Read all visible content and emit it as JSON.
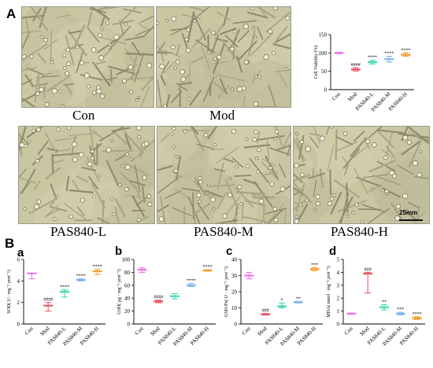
{
  "panel_labels": {
    "A": "A",
    "B": "B",
    "a": "a",
    "b": "b",
    "c": "c",
    "d": "d"
  },
  "captions": [
    "Con",
    "Mod",
    "PAS840-L",
    "PAS840-M",
    "PAS840-H"
  ],
  "scale_bar_label": "25mm",
  "colors": {
    "Con": "#e879e8",
    "Mod": "#ec5a6c",
    "PAS840-L": "#3fd8b4",
    "PAS840-M": "#86b4ee",
    "PAS840-H": "#f5a030"
  },
  "chart_data": [
    {
      "id": "A",
      "type": "scatter",
      "title": "",
      "ylabel": "Cell Viability (%)",
      "ylim": [
        0,
        150
      ],
      "yticks": [
        0,
        50,
        100,
        150
      ],
      "categories": [
        "Con",
        "Mod",
        "PAS840-L",
        "PAS840-M",
        "PAS840-H"
      ],
      "values": [
        100,
        55,
        75,
        83,
        95
      ],
      "low": [
        98,
        51,
        70,
        75,
        91
      ],
      "high": [
        102,
        60,
        80,
        91,
        100
      ],
      "annotations": [
        "",
        "####",
        "****",
        "****",
        "****"
      ]
    },
    {
      "id": "a",
      "type": "scatter",
      "ylabel": "SOD( U · mg⁻¹ prot⁻¹)",
      "ylim": [
        0,
        6
      ],
      "yticks": [
        0,
        2,
        4,
        6
      ],
      "categories": [
        "Con",
        "Mod",
        "PAS840-L",
        "PAS840-M",
        "PAS840-H"
      ],
      "values": [
        4.7,
        1.7,
        3.0,
        4.1,
        4.9
      ],
      "low": [
        4.2,
        1.2,
        2.5,
        4.0,
        4.6
      ],
      "high": [
        4.7,
        2.0,
        3.2,
        4.2,
        5.1
      ],
      "annotations": [
        "",
        "####",
        "****",
        "****",
        "****"
      ]
    },
    {
      "id": "b",
      "type": "scatter",
      "ylabel": "GSH( μg · mg⁻¹ prot⁻¹)",
      "ylim": [
        0,
        100
      ],
      "yticks": [
        0,
        20,
        40,
        60,
        80,
        100
      ],
      "categories": [
        "Con",
        "Mod",
        "PAS840-L",
        "PAS840-M",
        "PAS840-H"
      ],
      "values": [
        84,
        35,
        43,
        60,
        83
      ],
      "low": [
        80,
        33,
        39,
        58,
        82
      ],
      "high": [
        87,
        37,
        47,
        63,
        84
      ],
      "annotations": [
        "",
        "####",
        "",
        "****",
        "****"
      ]
    },
    {
      "id": "c",
      "type": "scatter",
      "ylabel": "GSH-Px( U · mg⁻¹ prot⁻¹)",
      "ylim": [
        0,
        40
      ],
      "yticks": [
        0,
        10,
        20,
        30,
        40
      ],
      "categories": [
        "Con",
        "Mod",
        "PAS840-L",
        "PAS840-M",
        "PAS840-H"
      ],
      "values": [
        30,
        6,
        11,
        13.5,
        34
      ],
      "low": [
        28,
        5.5,
        10,
        13,
        33
      ],
      "high": [
        32,
        6.5,
        13,
        14,
        35
      ],
      "annotations": [
        "",
        "###",
        "*",
        "**",
        "***"
      ]
    },
    {
      "id": "d",
      "type": "scatter",
      "ylabel": "MDA( nmol · mg⁻¹ prot⁻¹)",
      "ylim": [
        0,
        5
      ],
      "yticks": [
        0,
        1,
        2,
        3,
        4,
        5
      ],
      "categories": [
        "Con",
        "Mod",
        "PAS840-L",
        "PAS840-M",
        "PAS840-H"
      ],
      "values": [
        0.8,
        3.9,
        1.3,
        0.8,
        0.45
      ],
      "low": [
        0.75,
        2.4,
        1.1,
        0.7,
        0.35
      ],
      "high": [
        0.85,
        4.0,
        1.5,
        0.9,
        0.55
      ],
      "annotations": [
        "",
        "###",
        "**",
        "***",
        "****"
      ]
    }
  ]
}
